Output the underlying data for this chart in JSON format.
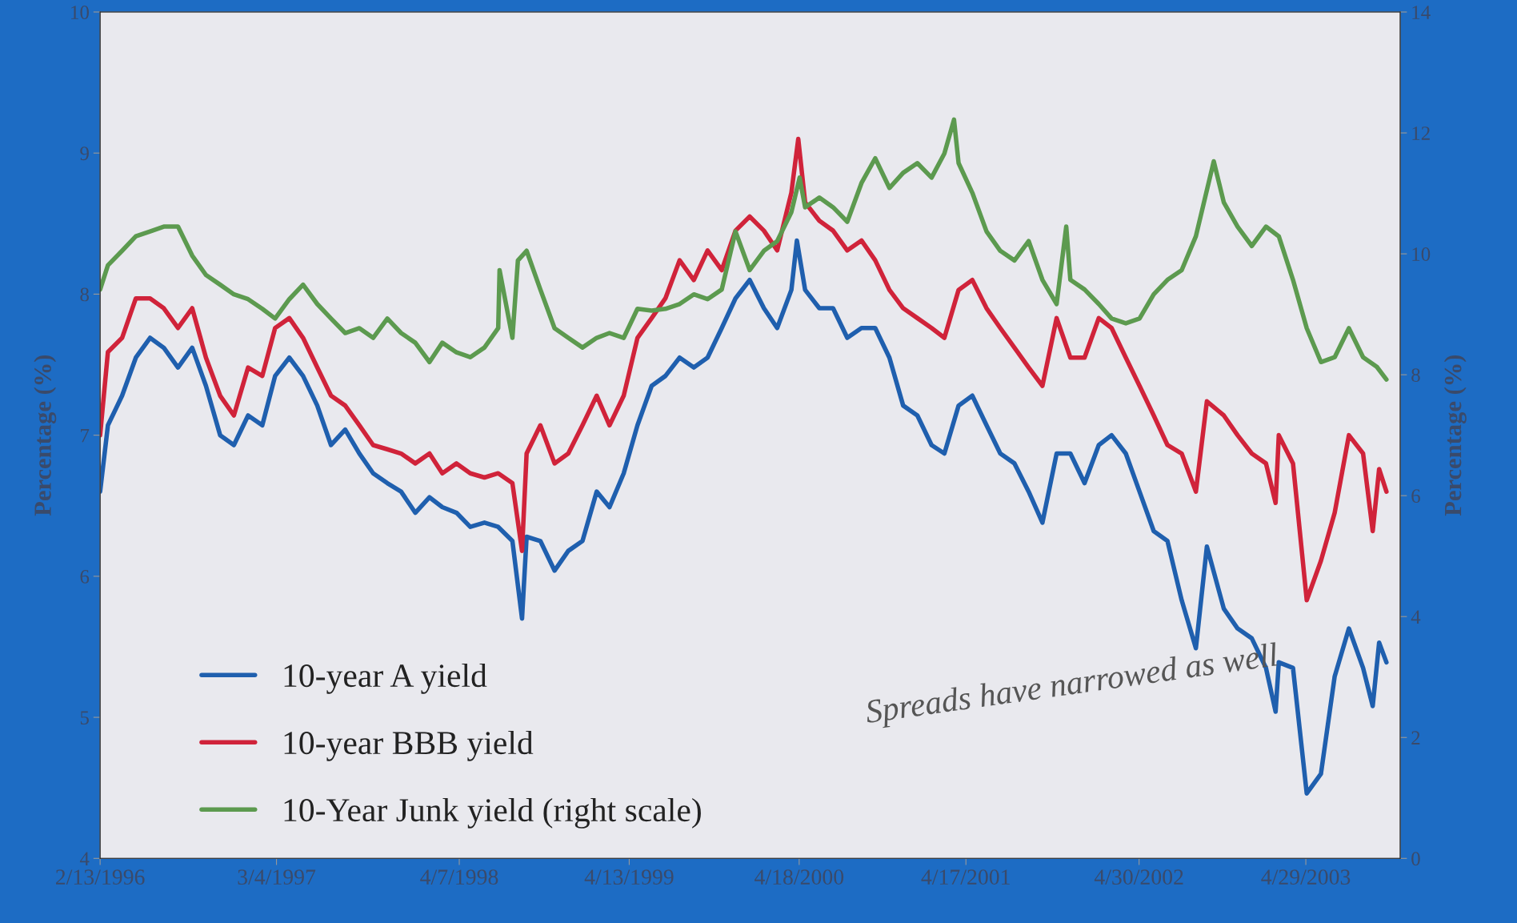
{
  "chart_data": {
    "type": "line",
    "ylabel": "Percentage (%)",
    "y2label": "Percentage (%)",
    "xlim": [
      "1996-02-13",
      "2003-11-21"
    ],
    "xticks": [
      {
        "value": "1996-02-13",
        "label": "2/13/1996"
      },
      {
        "value": "1997-03-04",
        "label": "3/4/1997"
      },
      {
        "value": "1998-04-07",
        "label": "4/7/1998"
      },
      {
        "value": "1999-04-13",
        "label": "4/13/1999"
      },
      {
        "value": "2000-04-18",
        "label": "4/18/2000"
      },
      {
        "value": "2001-04-17",
        "label": "4/17/2001"
      },
      {
        "value": "2002-04-30",
        "label": "4/30/2002"
      },
      {
        "value": "2003-04-29",
        "label": "4/29/2003"
      }
    ],
    "ylim": [
      4,
      10
    ],
    "yticks": [
      4,
      5,
      6,
      7,
      8,
      9,
      10
    ],
    "y2lim": [
      0,
      14
    ],
    "y2ticks": [
      0,
      2,
      4,
      6,
      8,
      10,
      12,
      14
    ],
    "grid": false,
    "legend": "bottom left",
    "annotations": [
      "Spreads have narrowed as well"
    ],
    "series": [
      {
        "name": "10-year A yield",
        "color": "#1f5fae",
        "x": [
          "1996-02-13",
          "1996-03",
          "1996-04",
          "1996-05",
          "1996-06",
          "1996-07",
          "1996-08",
          "1996-09",
          "1996-10",
          "1996-11",
          "1996-12",
          "1997-01",
          "1997-02",
          "1997-03",
          "1997-04",
          "1997-05",
          "1997-06",
          "1997-07",
          "1997-08",
          "1997-09",
          "1997-10",
          "1997-11",
          "1997-12",
          "1998-01",
          "1998-02",
          "1998-03",
          "1998-04",
          "1998-05",
          "1998-06",
          "1998-07",
          "1998-08",
          "1998-08-22",
          "1998-09",
          "1998-10",
          "1998-11",
          "1998-12",
          "1999-01",
          "1999-02",
          "1999-03",
          "1999-04",
          "1999-05",
          "1999-06",
          "1999-07",
          "1999-08",
          "1999-09",
          "1999-10",
          "1999-11",
          "1999-12",
          "2000-01",
          "2000-02",
          "2000-03",
          "2000-04",
          "2000-04-13",
          "2000-05",
          "2000-06",
          "2000-07",
          "2000-08",
          "2000-09",
          "2000-10",
          "2000-11",
          "2000-12",
          "2001-01",
          "2001-02",
          "2001-03",
          "2001-04",
          "2001-05",
          "2001-06",
          "2001-07",
          "2001-08",
          "2001-09",
          "2001-10",
          "2001-11",
          "2001-12",
          "2002-01",
          "2002-02",
          "2002-03",
          "2002-04",
          "2002-05",
          "2002-06",
          "2002-07",
          "2002-08",
          "2002-09",
          "2002-09-25",
          "2002-11",
          "2002-12",
          "2003-01",
          "2003-02",
          "2003-02-22",
          "2003-03",
          "2003-04",
          "2003-05",
          "2003-06",
          "2003-07",
          "2003-08",
          "2003-09",
          "2003-09-22",
          "2003-10-06",
          "2003-10-22"
        ],
        "values": [
          6.6,
          7.07,
          7.28,
          7.55,
          7.69,
          7.62,
          7.48,
          7.62,
          7.35,
          7.0,
          6.93,
          7.14,
          7.07,
          7.42,
          7.55,
          7.42,
          7.21,
          6.93,
          7.04,
          6.87,
          6.73,
          6.66,
          6.6,
          6.45,
          6.56,
          6.49,
          6.45,
          6.35,
          6.38,
          6.35,
          6.25,
          5.7,
          6.28,
          6.25,
          6.04,
          6.18,
          6.25,
          6.6,
          6.49,
          6.73,
          7.07,
          7.35,
          7.42,
          7.55,
          7.48,
          7.55,
          7.76,
          7.97,
          8.1,
          7.9,
          7.76,
          8.03,
          8.38,
          8.03,
          7.9,
          7.9,
          7.69,
          7.76,
          7.76,
          7.55,
          7.21,
          7.14,
          6.93,
          6.87,
          7.21,
          7.28,
          7.07,
          6.87,
          6.8,
          6.6,
          6.38,
          6.87,
          6.87,
          6.66,
          6.93,
          7.0,
          6.87,
          6.6,
          6.32,
          6.25,
          5.83,
          5.49,
          6.21,
          5.77,
          5.63,
          5.56,
          5.35,
          5.04,
          5.39,
          5.35,
          4.46,
          4.6,
          5.29,
          5.63,
          5.35,
          5.08,
          5.53,
          5.39
        ]
      },
      {
        "name": "10-year BBB yield",
        "color": "#d0233a",
        "x": [
          "1996-02-13",
          "1996-03",
          "1996-04",
          "1996-05",
          "1996-06",
          "1996-07",
          "1996-08",
          "1996-09",
          "1996-10",
          "1996-11",
          "1996-12",
          "1997-01",
          "1997-02",
          "1997-03",
          "1997-04",
          "1997-05",
          "1997-06",
          "1997-07",
          "1997-08",
          "1997-09",
          "1997-10",
          "1997-11",
          "1997-12",
          "1998-01",
          "1998-02",
          "1998-03",
          "1998-04",
          "1998-05",
          "1998-06",
          "1998-07",
          "1998-08",
          "1998-08-22",
          "1998-09",
          "1998-10",
          "1998-11",
          "1998-12",
          "1999-01",
          "1999-02",
          "1999-03",
          "1999-04",
          "1999-05",
          "1999-06",
          "1999-07",
          "1999-08",
          "1999-09",
          "1999-10",
          "1999-11",
          "1999-12",
          "2000-01",
          "2000-02",
          "2000-03",
          "2000-04",
          "2000-04-16",
          "2000-05",
          "2000-06",
          "2000-07",
          "2000-08",
          "2000-09",
          "2000-10",
          "2000-11",
          "2000-12",
          "2001-01",
          "2001-02",
          "2001-03",
          "2001-04",
          "2001-05",
          "2001-06",
          "2001-07",
          "2001-08",
          "2001-09",
          "2001-10",
          "2001-11",
          "2001-12",
          "2002-01",
          "2002-02",
          "2002-03",
          "2002-04",
          "2002-05",
          "2002-06",
          "2002-07",
          "2002-08",
          "2002-09",
          "2002-09-25",
          "2002-11",
          "2002-12",
          "2003-01",
          "2003-02",
          "2003-02-22",
          "2003-03",
          "2003-04",
          "2003-05",
          "2003-06",
          "2003-07",
          "2003-08",
          "2003-09",
          "2003-09-22",
          "2003-10-06",
          "2003-10-22"
        ],
        "values": [
          7.0,
          7.59,
          7.69,
          7.97,
          7.97,
          7.9,
          7.76,
          7.9,
          7.55,
          7.28,
          7.14,
          7.48,
          7.42,
          7.76,
          7.83,
          7.69,
          7.48,
          7.28,
          7.21,
          7.07,
          6.93,
          6.9,
          6.87,
          6.8,
          6.87,
          6.73,
          6.8,
          6.73,
          6.7,
          6.73,
          6.66,
          6.18,
          6.87,
          7.07,
          6.8,
          6.87,
          7.07,
          7.28,
          7.07,
          7.28,
          7.69,
          7.83,
          7.97,
          8.24,
          8.1,
          8.31,
          8.17,
          8.45,
          8.55,
          8.45,
          8.31,
          8.72,
          9.1,
          8.65,
          8.52,
          8.45,
          8.31,
          8.38,
          8.24,
          8.03,
          7.9,
          7.83,
          7.76,
          7.69,
          8.03,
          8.1,
          7.9,
          7.76,
          7.62,
          7.48,
          7.35,
          7.83,
          7.55,
          7.55,
          7.83,
          7.76,
          7.55,
          7.35,
          7.14,
          6.93,
          6.87,
          6.6,
          7.24,
          7.14,
          7.0,
          6.87,
          6.8,
          6.52,
          7.0,
          6.8,
          5.83,
          6.11,
          6.45,
          7.0,
          6.87,
          6.32,
          6.76,
          6.6
        ]
      },
      {
        "name": "10-Year Junk yield (right scale)",
        "color": "#5c9a4f",
        "axis": "y2",
        "x": [
          "1996-02-13",
          "1996-03",
          "1996-04",
          "1996-05",
          "1996-06",
          "1996-07",
          "1996-08",
          "1996-09",
          "1996-10",
          "1996-11",
          "1996-12",
          "1997-01",
          "1997-02",
          "1997-03",
          "1997-04",
          "1997-05",
          "1997-06",
          "1997-07",
          "1997-08",
          "1997-09",
          "1997-10",
          "1997-11",
          "1997-12",
          "1998-01",
          "1998-02",
          "1998-03",
          "1998-04",
          "1998-05",
          "1998-06",
          "1998-07",
          "1998-07-04",
          "1998-08",
          "1998-08-13",
          "1998-09",
          "1998-10",
          "1998-11",
          "1998-12",
          "1999-01",
          "1999-02",
          "1999-03",
          "1999-04",
          "1999-05",
          "1999-06",
          "1999-07",
          "1999-08",
          "1999-09",
          "1999-10",
          "1999-11",
          "1999-12",
          "2000-01",
          "2000-02",
          "2000-03",
          "2000-04",
          "2000-04-19",
          "2000-05",
          "2000-06",
          "2000-07",
          "2000-08",
          "2000-09",
          "2000-10",
          "2000-11",
          "2000-12",
          "2001-01",
          "2001-02",
          "2001-03",
          "2001-03-22",
          "2001-04",
          "2001-05",
          "2001-06",
          "2001-07",
          "2001-08",
          "2001-09",
          "2001-10",
          "2001-11",
          "2001-11-22",
          "2001-12",
          "2002-01",
          "2002-02",
          "2002-03",
          "2002-04",
          "2002-05",
          "2002-06",
          "2002-07",
          "2002-08",
          "2002-09",
          "2002-10-10",
          "2002-11",
          "2002-12",
          "2003-01",
          "2003-02",
          "2003-03",
          "2003-04",
          "2003-05",
          "2003-06",
          "2003-07",
          "2003-08",
          "2003-09",
          "2003-10",
          "2003-10-22"
        ],
        "values": [
          9.41,
          9.81,
          10.05,
          10.29,
          10.37,
          10.45,
          10.45,
          9.97,
          9.65,
          9.49,
          9.33,
          9.25,
          9.09,
          8.93,
          9.25,
          9.49,
          9.17,
          8.93,
          8.69,
          8.77,
          8.61,
          8.93,
          8.69,
          8.53,
          8.21,
          8.53,
          8.37,
          8.29,
          8.45,
          8.77,
          9.73,
          8.61,
          9.89,
          10.05,
          9.41,
          8.77,
          8.61,
          8.45,
          8.61,
          8.69,
          8.61,
          9.09,
          9.06,
          9.09,
          9.17,
          9.33,
          9.25,
          9.41,
          10.37,
          9.73,
          10.05,
          10.21,
          10.69,
          11.26,
          10.77,
          10.93,
          10.77,
          10.53,
          11.17,
          11.58,
          11.09,
          11.34,
          11.5,
          11.26,
          11.66,
          12.22,
          11.5,
          11.01,
          10.37,
          10.05,
          9.89,
          10.21,
          9.57,
          9.17,
          10.45,
          9.57,
          9.41,
          9.17,
          8.93,
          8.85,
          8.93,
          9.33,
          9.57,
          9.73,
          10.29,
          11.53,
          10.85,
          10.45,
          10.13,
          10.45,
          10.29,
          9.57,
          8.77,
          8.21,
          8.29,
          8.77,
          8.29,
          8.13,
          7.92
        ]
      }
    ]
  }
}
